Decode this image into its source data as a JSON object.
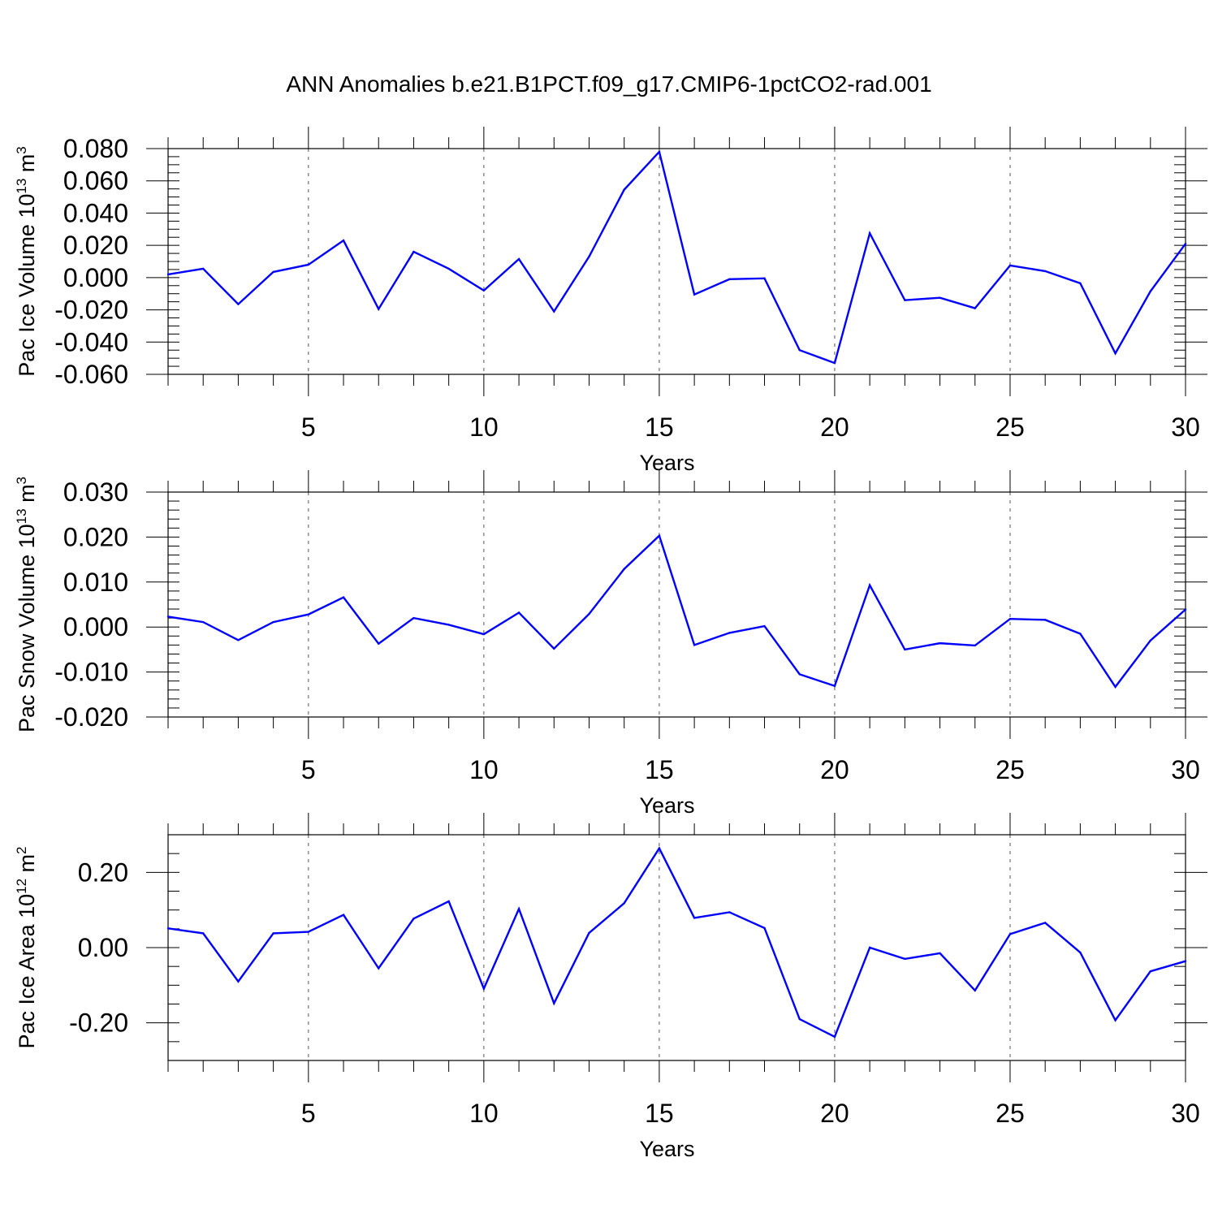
{
  "title": "ANN Anomalies b.e21.B1PCT.f09_g17.CMIP6-1pctCO2-rad.001",
  "chart_data": [
    {
      "type": "line",
      "title": "ANN Anomalies b.e21.B1PCT.f09_g17.CMIP6-1pctCO2-rad.001",
      "xlabel": "Years",
      "ylabel": {
        "text": "Pac Ice Volume 10",
        "sup": "13",
        "unit": " m",
        "unitsup": "3"
      },
      "xlim": [
        1,
        30
      ],
      "ylim": [
        -0.06,
        0.08
      ],
      "xticks": [
        5,
        10,
        15,
        20,
        25,
        30
      ],
      "yticks": [
        -0.06,
        -0.04,
        -0.02,
        0.0,
        0.02,
        0.04,
        0.06,
        0.08
      ],
      "ytick_labels": [
        "-0.060",
        "-0.040",
        "-0.020",
        "0.000",
        "0.020",
        "0.040",
        "0.060",
        "0.080"
      ],
      "yminor_step": 0.005,
      "grid": "dashed vertical at major x ticks",
      "color": "#0000ff",
      "x": [
        1,
        2,
        3,
        4,
        5,
        6,
        7,
        8,
        9,
        10,
        11,
        12,
        13,
        14,
        15,
        16,
        17,
        18,
        19,
        20,
        21,
        22,
        23,
        24,
        25,
        26,
        27,
        28,
        29,
        30
      ],
      "values": [
        0.002,
        0.0055,
        -0.0165,
        0.0035,
        0.008,
        0.023,
        -0.0195,
        0.016,
        0.0055,
        -0.008,
        0.0115,
        -0.021,
        0.013,
        0.0545,
        0.078,
        -0.0105,
        -0.001,
        -0.0005,
        -0.045,
        -0.053,
        0.0275,
        -0.014,
        -0.0125,
        -0.019,
        0.0075,
        0.004,
        -0.0035,
        -0.047,
        -0.0085,
        0.021
      ]
    },
    {
      "type": "line",
      "xlabel": "Years",
      "ylabel": {
        "text": "Pac Snow Volume 10",
        "sup": "13",
        "unit": " m",
        "unitsup": "3"
      },
      "xlim": [
        1,
        30
      ],
      "ylim": [
        -0.02,
        0.03
      ],
      "xticks": [
        5,
        10,
        15,
        20,
        25,
        30
      ],
      "yticks": [
        -0.02,
        -0.01,
        0.0,
        0.01,
        0.02,
        0.03
      ],
      "ytick_labels": [
        "-0.020",
        "-0.010",
        "0.000",
        "0.010",
        "0.020",
        "0.030"
      ],
      "yminor_step": 0.002,
      "grid": "dashed vertical at major x ticks",
      "color": "#0000ff",
      "x": [
        1,
        2,
        3,
        4,
        5,
        6,
        7,
        8,
        9,
        10,
        11,
        12,
        13,
        14,
        15,
        16,
        17,
        18,
        19,
        20,
        21,
        22,
        23,
        24,
        25,
        26,
        27,
        28,
        29,
        30
      ],
      "values": [
        0.0023,
        0.0011,
        -0.0029,
        0.0011,
        0.0028,
        0.0066,
        -0.0037,
        0.002,
        0.0005,
        -0.0016,
        0.0032,
        -0.0048,
        0.0029,
        0.0129,
        0.0203,
        -0.004,
        -0.0013,
        0.0002,
        -0.0105,
        -0.0131,
        0.0093,
        -0.005,
        -0.0036,
        -0.0041,
        0.0018,
        0.0016,
        -0.0015,
        -0.0133,
        -0.003,
        0.0039
      ]
    },
    {
      "type": "line",
      "xlabel": "Years",
      "ylabel": {
        "text": "Pac Ice Area 10",
        "sup": "12",
        "unit": " m",
        "unitsup": "2"
      },
      "xlim": [
        1,
        30
      ],
      "ylim": [
        -0.3,
        0.3
      ],
      "xticks": [
        5,
        10,
        15,
        20,
        25,
        30
      ],
      "yticks": [
        -0.2,
        0.0,
        0.2
      ],
      "ytick_labels": [
        "-0.20",
        "0.00",
        "0.20"
      ],
      "yminor_step": 0.05,
      "grid": "dashed vertical at major x ticks",
      "color": "#0000ff",
      "x": [
        1,
        2,
        3,
        4,
        5,
        6,
        7,
        8,
        9,
        10,
        11,
        12,
        13,
        14,
        15,
        16,
        17,
        18,
        19,
        20,
        21,
        22,
        23,
        24,
        25,
        26,
        27,
        28,
        29,
        30
      ],
      "values": [
        0.051,
        0.038,
        -0.09,
        0.038,
        0.042,
        0.087,
        -0.055,
        0.077,
        0.123,
        -0.109,
        0.103,
        -0.148,
        0.039,
        0.118,
        0.264,
        0.079,
        0.094,
        0.052,
        -0.19,
        -0.237,
        0.0,
        -0.03,
        -0.015,
        -0.114,
        0.036,
        0.066,
        -0.013,
        -0.193,
        -0.063,
        -0.036
      ]
    }
  ]
}
